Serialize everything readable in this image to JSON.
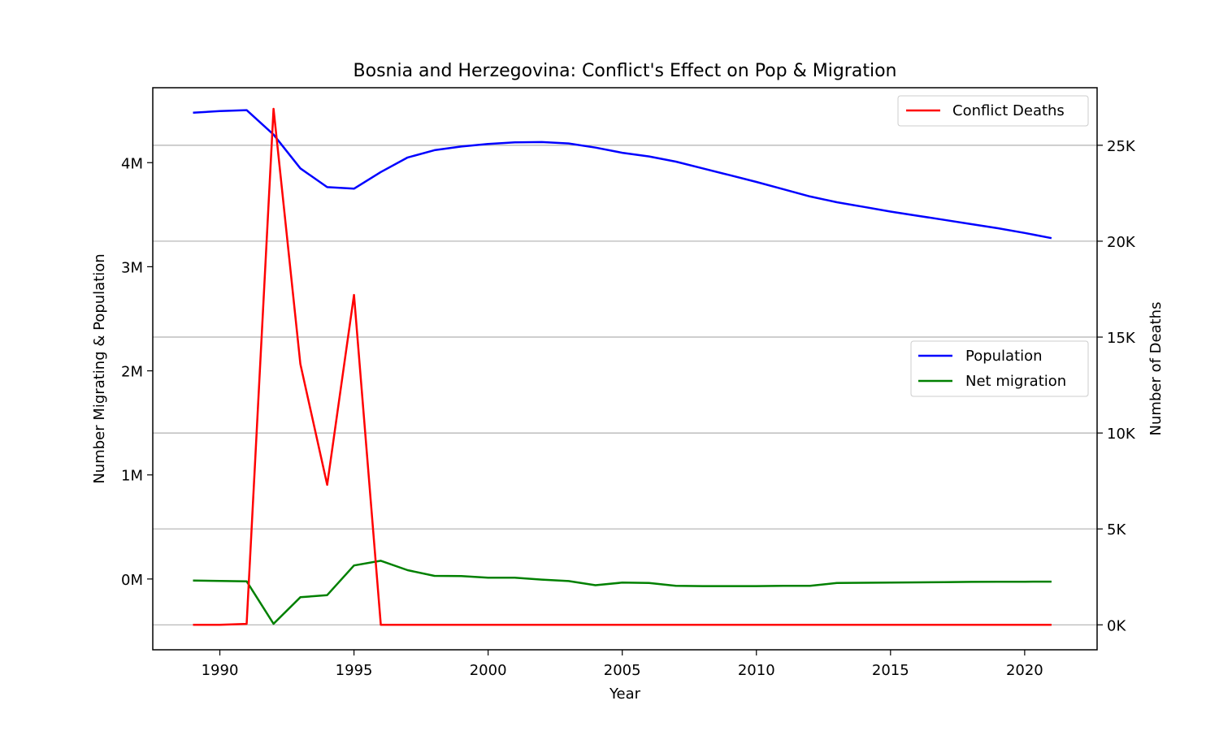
{
  "chart_data": {
    "type": "line",
    "title": "Bosnia and Herzegovina: Conflict's Effect on Pop & Migration",
    "xlabel": "Year",
    "ylabel_left": "Number Migrating & Population",
    "ylabel_right": "Number of Deaths",
    "xlim": [
      1987.5,
      2022.7
    ],
    "ylim_left": [
      -680000,
      4720000
    ],
    "ylim_right": [
      -1300,
      28000
    ],
    "xticks": [
      1990,
      1995,
      2000,
      2005,
      2010,
      2015,
      2020
    ],
    "xtick_labels": [
      "1990",
      "1995",
      "2000",
      "2005",
      "2010",
      "2015",
      "2020"
    ],
    "yticks_left": [
      0,
      1000000,
      2000000,
      3000000,
      4000000
    ],
    "ytick_labels_left": [
      "0M",
      "1M",
      "2M",
      "3M",
      "4M"
    ],
    "yticks_right": [
      0,
      5000,
      10000,
      15000,
      20000,
      25000
    ],
    "ytick_labels_right": [
      "0K",
      "5K",
      "10K",
      "15K",
      "20K",
      "25K"
    ],
    "grid": "horizontal, right axis",
    "legend_right_axis": "top-right",
    "legend_left_axis": "center-right",
    "x": [
      1989,
      1990,
      1991,
      1992,
      1993,
      1994,
      1995,
      1996,
      1997,
      1998,
      1999,
      2000,
      2001,
      2002,
      2003,
      2004,
      2005,
      2006,
      2007,
      2008,
      2009,
      2010,
      2011,
      2012,
      2013,
      2014,
      2015,
      2016,
      2017,
      2018,
      2019,
      2020,
      2021
    ],
    "series": [
      {
        "name": "Population",
        "axis": "left",
        "color": "#0000ff",
        "values": [
          4480000,
          4495000,
          4505000,
          4270000,
          3945000,
          3765000,
          3750000,
          3910000,
          4050000,
          4120000,
          4155000,
          4180000,
          4195000,
          4198000,
          4185000,
          4145000,
          4095000,
          4060000,
          4010000,
          3945000,
          3880000,
          3815000,
          3745000,
          3675000,
          3620000,
          3575000,
          3530000,
          3490000,
          3450000,
          3410000,
          3370000,
          3325000,
          3275000
        ]
      },
      {
        "name": "Net migration",
        "axis": "left",
        "color": "#008000",
        "values": [
          -15000,
          -18000,
          -22000,
          -430000,
          -175000,
          -155000,
          130000,
          175000,
          85000,
          30000,
          28000,
          12000,
          12000,
          -6000,
          -20000,
          -60000,
          -35000,
          -38000,
          -65000,
          -68000,
          -68000,
          -68000,
          -65000,
          -66000,
          -38000,
          -36000,
          -34000,
          -32000,
          -30000,
          -28000,
          -27000,
          -26000,
          -25000
        ]
      },
      {
        "name": "Conflict Deaths",
        "axis": "right",
        "color": "#ff0000",
        "values": [
          0,
          0,
          50,
          26900,
          13600,
          7300,
          17200,
          0,
          0,
          0,
          0,
          0,
          0,
          0,
          0,
          0,
          0,
          0,
          0,
          0,
          0,
          0,
          0,
          0,
          0,
          0,
          0,
          0,
          0,
          0,
          0,
          0,
          0
        ]
      }
    ]
  }
}
